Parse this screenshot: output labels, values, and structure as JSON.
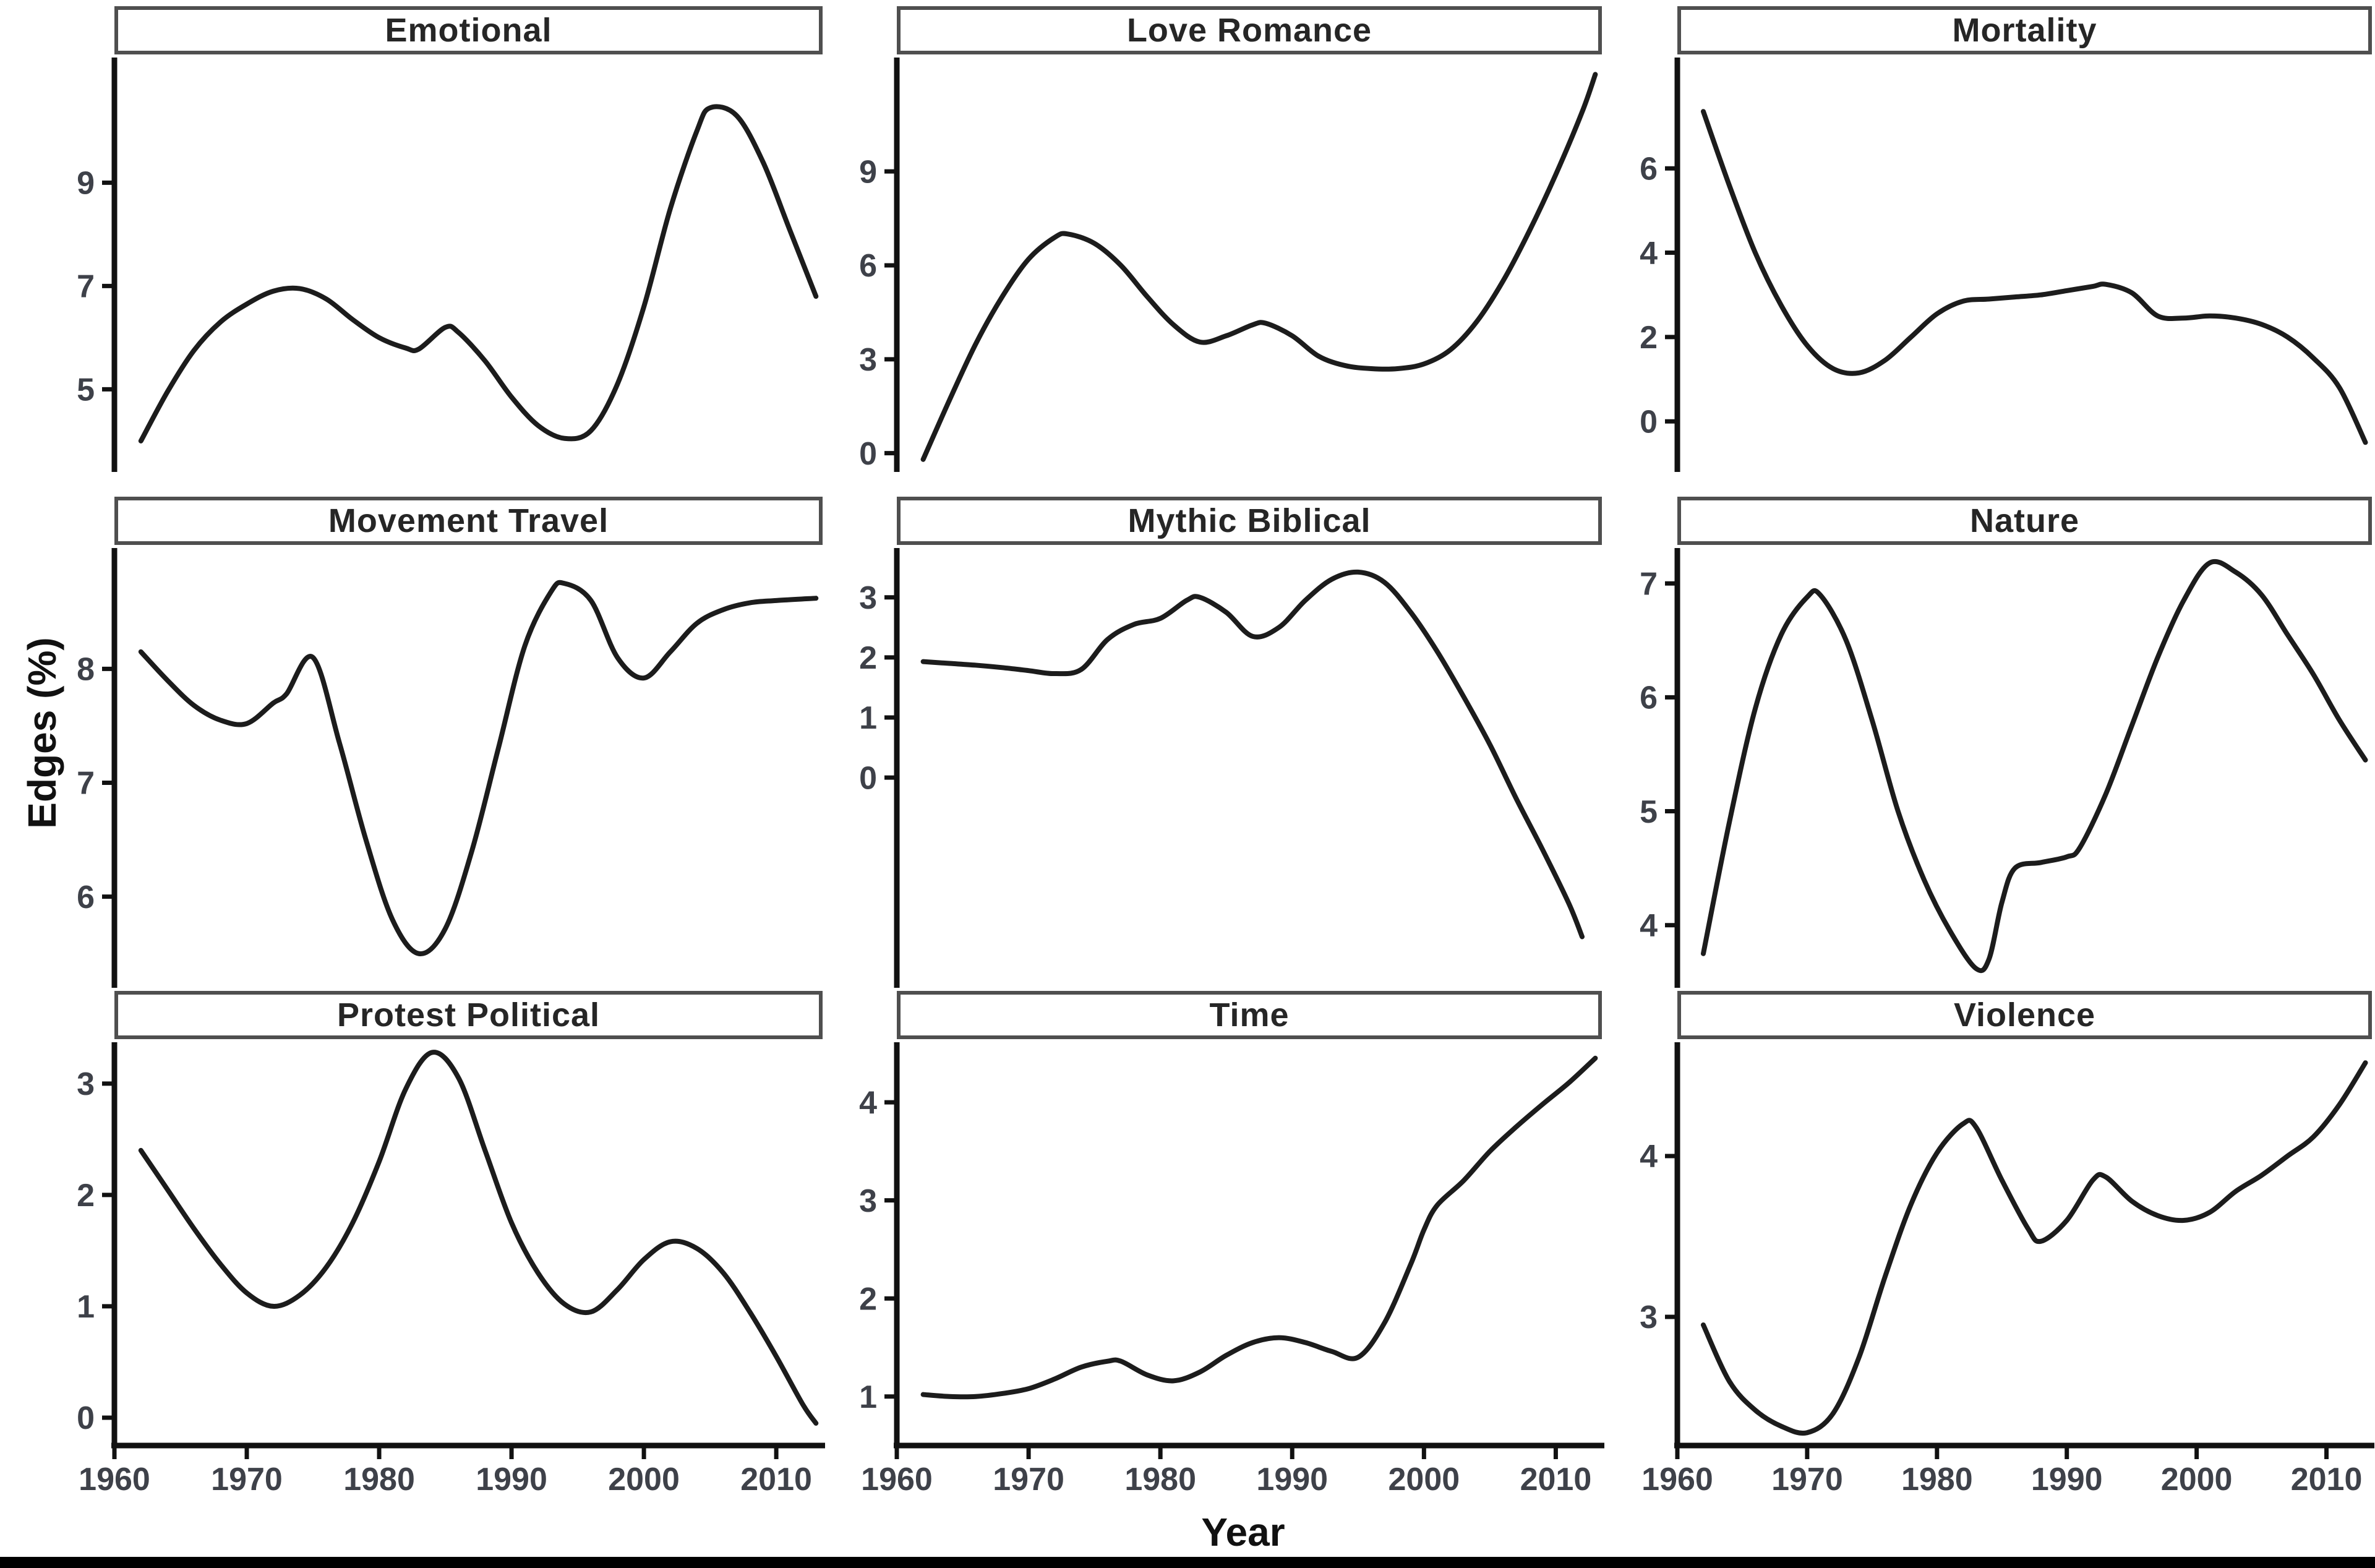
{
  "figure": {
    "ylabel": "Edges (%)",
    "xlabel": "Year"
  },
  "axis": {
    "xlim": [
      1960,
      2013.5
    ],
    "xticks": [
      1960,
      1970,
      1980,
      1990,
      2000,
      2010
    ],
    "xtick_labels": [
      "1960",
      "1970",
      "1980",
      "1990",
      "2000",
      "2010"
    ]
  },
  "style": {
    "curve_color": "#1c1c1c",
    "curve_width": 8,
    "axis_color": "#111111",
    "tick_label_color": "#3e4149",
    "strip_border_color": "#4f4f4f",
    "title_color": "#262626",
    "bottom_bar_color": "#000000"
  },
  "chart_data": [
    {
      "type": "line",
      "title": "Emotional",
      "ylim": [
        3.4,
        11.4
      ],
      "yticks": [
        5,
        7,
        9
      ],
      "points": [
        [
          1962,
          4.0
        ],
        [
          1964,
          4.95
        ],
        [
          1966,
          5.75
        ],
        [
          1968,
          6.3
        ],
        [
          1970,
          6.65
        ],
        [
          1972,
          6.9
        ],
        [
          1974,
          6.95
        ],
        [
          1976,
          6.75
        ],
        [
          1978,
          6.35
        ],
        [
          1980,
          6.0
        ],
        [
          1982,
          5.8
        ],
        [
          1983,
          5.78
        ],
        [
          1985,
          6.2
        ],
        [
          1986,
          6.1
        ],
        [
          1988,
          5.55
        ],
        [
          1990,
          4.85
        ],
        [
          1992,
          4.3
        ],
        [
          1994,
          4.05
        ],
        [
          1996,
          4.2
        ],
        [
          1998,
          5.1
        ],
        [
          2000,
          6.6
        ],
        [
          2002,
          8.5
        ],
        [
          2004,
          10.0
        ],
        [
          2005,
          10.45
        ],
        [
          2007,
          10.3
        ],
        [
          2009,
          9.4
        ],
        [
          2011,
          8.1
        ],
        [
          2013,
          6.8
        ]
      ]
    },
    {
      "type": "line",
      "title": "Love Romance",
      "ylim": [
        -0.6,
        12.6
      ],
      "yticks": [
        0,
        3,
        6,
        9
      ],
      "points": [
        [
          1962,
          -0.2
        ],
        [
          1964,
          1.7
        ],
        [
          1966,
          3.5
        ],
        [
          1968,
          5.0
        ],
        [
          1970,
          6.2
        ],
        [
          1972,
          6.9
        ],
        [
          1973,
          7.0
        ],
        [
          1975,
          6.7
        ],
        [
          1977,
          6.0
        ],
        [
          1979,
          5.0
        ],
        [
          1981,
          4.1
        ],
        [
          1983,
          3.55
        ],
        [
          1985,
          3.75
        ],
        [
          1987,
          4.1
        ],
        [
          1988,
          4.15
        ],
        [
          1990,
          3.75
        ],
        [
          1992,
          3.1
        ],
        [
          1994,
          2.8
        ],
        [
          1996,
          2.7
        ],
        [
          1998,
          2.7
        ],
        [
          2000,
          2.85
        ],
        [
          2002,
          3.3
        ],
        [
          2004,
          4.2
        ],
        [
          2006,
          5.5
        ],
        [
          2008,
          7.1
        ],
        [
          2010,
          8.9
        ],
        [
          2012,
          10.9
        ],
        [
          2013,
          12.1
        ]
      ]
    },
    {
      "type": "line",
      "title": "Mortality",
      "ylim": [
        -1.2,
        8.6
      ],
      "yticks": [
        0,
        2,
        4,
        6
      ],
      "points": [
        [
          1962,
          7.35
        ],
        [
          1964,
          5.6
        ],
        [
          1966,
          4.0
        ],
        [
          1968,
          2.75
        ],
        [
          1970,
          1.8
        ],
        [
          1972,
          1.25
        ],
        [
          1974,
          1.15
        ],
        [
          1976,
          1.45
        ],
        [
          1978,
          2.0
        ],
        [
          1980,
          2.55
        ],
        [
          1982,
          2.85
        ],
        [
          1984,
          2.9
        ],
        [
          1986,
          2.95
        ],
        [
          1988,
          3.0
        ],
        [
          1990,
          3.1
        ],
        [
          1992,
          3.2
        ],
        [
          1993,
          3.25
        ],
        [
          1995,
          3.05
        ],
        [
          1997,
          2.5
        ],
        [
          1999,
          2.45
        ],
        [
          2001,
          2.5
        ],
        [
          2003,
          2.45
        ],
        [
          2005,
          2.3
        ],
        [
          2007,
          2.0
        ],
        [
          2009,
          1.5
        ],
        [
          2011,
          0.8
        ],
        [
          2013,
          -0.5
        ]
      ]
    },
    {
      "type": "line",
      "title": "Movement Travel",
      "ylim": [
        5.2,
        9.05
      ],
      "yticks": [
        6,
        7,
        8
      ],
      "points": [
        [
          1962,
          8.15
        ],
        [
          1964,
          7.9
        ],
        [
          1966,
          7.68
        ],
        [
          1968,
          7.55
        ],
        [
          1970,
          7.52
        ],
        [
          1972,
          7.7
        ],
        [
          1973,
          7.78
        ],
        [
          1975,
          8.1
        ],
        [
          1977,
          7.35
        ],
        [
          1979,
          6.5
        ],
        [
          1981,
          5.8
        ],
        [
          1983,
          5.5
        ],
        [
          1985,
          5.72
        ],
        [
          1987,
          6.4
        ],
        [
          1989,
          7.3
        ],
        [
          1991,
          8.2
        ],
        [
          1993,
          8.68
        ],
        [
          1994,
          8.75
        ],
        [
          1996,
          8.6
        ],
        [
          1998,
          8.1
        ],
        [
          2000,
          7.92
        ],
        [
          2002,
          8.15
        ],
        [
          2004,
          8.4
        ],
        [
          2006,
          8.52
        ],
        [
          2008,
          8.58
        ],
        [
          2010,
          8.6
        ],
        [
          2013,
          8.62
        ]
      ]
    },
    {
      "type": "line",
      "title": "Mythic Biblical",
      "ylim": [
        -3.5,
        3.8
      ],
      "yticks": [
        0,
        1,
        2,
        3
      ],
      "points": [
        [
          1962,
          1.93
        ],
        [
          1964,
          1.9
        ],
        [
          1966,
          1.87
        ],
        [
          1968,
          1.83
        ],
        [
          1970,
          1.78
        ],
        [
          1972,
          1.73
        ],
        [
          1974,
          1.8
        ],
        [
          1976,
          2.3
        ],
        [
          1978,
          2.55
        ],
        [
          1980,
          2.65
        ],
        [
          1982,
          2.95
        ],
        [
          1983,
          3.0
        ],
        [
          1985,
          2.75
        ],
        [
          1987,
          2.35
        ],
        [
          1989,
          2.5
        ],
        [
          1991,
          2.95
        ],
        [
          1993,
          3.3
        ],
        [
          1995,
          3.42
        ],
        [
          1997,
          3.25
        ],
        [
          1999,
          2.75
        ],
        [
          2001,
          2.1
        ],
        [
          2003,
          1.35
        ],
        [
          2005,
          0.55
        ],
        [
          2007,
          -0.35
        ],
        [
          2009,
          -1.2
        ],
        [
          2011,
          -2.1
        ],
        [
          2012,
          -2.65
        ]
      ]
    },
    {
      "type": "line",
      "title": "Nature",
      "ylim": [
        3.45,
        7.3
      ],
      "yticks": [
        4,
        5,
        6,
        7
      ],
      "points": [
        [
          1962,
          3.75
        ],
        [
          1964,
          4.9
        ],
        [
          1966,
          5.9
        ],
        [
          1968,
          6.55
        ],
        [
          1970,
          6.88
        ],
        [
          1971,
          6.9
        ],
        [
          1973,
          6.5
        ],
        [
          1975,
          5.8
        ],
        [
          1977,
          5.0
        ],
        [
          1979,
          4.4
        ],
        [
          1981,
          3.95
        ],
        [
          1983,
          3.62
        ],
        [
          1984,
          3.7
        ],
        [
          1985,
          4.2
        ],
        [
          1986,
          4.5
        ],
        [
          1988,
          4.55
        ],
        [
          1990,
          4.6
        ],
        [
          1991,
          4.68
        ],
        [
          1993,
          5.15
        ],
        [
          1995,
          5.75
        ],
        [
          1997,
          6.35
        ],
        [
          1999,
          6.85
        ],
        [
          2001,
          7.18
        ],
        [
          2003,
          7.1
        ],
        [
          2005,
          6.9
        ],
        [
          2007,
          6.55
        ],
        [
          2009,
          6.2
        ],
        [
          2011,
          5.8
        ],
        [
          2013,
          5.45
        ]
      ]
    },
    {
      "type": "line",
      "title": "Protest Political",
      "ylim": [
        -0.25,
        3.36
      ],
      "yticks": [
        0,
        1,
        2,
        3
      ],
      "points": [
        [
          1962,
          2.4
        ],
        [
          1964,
          2.05
        ],
        [
          1966,
          1.7
        ],
        [
          1968,
          1.38
        ],
        [
          1970,
          1.12
        ],
        [
          1972,
          1.0
        ],
        [
          1974,
          1.1
        ],
        [
          1976,
          1.35
        ],
        [
          1978,
          1.75
        ],
        [
          1980,
          2.3
        ],
        [
          1982,
          2.95
        ],
        [
          1984,
          3.28
        ],
        [
          1986,
          3.05
        ],
        [
          1988,
          2.4
        ],
        [
          1990,
          1.75
        ],
        [
          1992,
          1.3
        ],
        [
          1994,
          1.02
        ],
        [
          1996,
          0.95
        ],
        [
          1998,
          1.15
        ],
        [
          2000,
          1.42
        ],
        [
          2002,
          1.58
        ],
        [
          2004,
          1.52
        ],
        [
          2006,
          1.3
        ],
        [
          2008,
          0.95
        ],
        [
          2010,
          0.55
        ],
        [
          2012,
          0.12
        ],
        [
          2013,
          -0.05
        ]
      ]
    },
    {
      "type": "line",
      "title": "Time",
      "ylim": [
        0.5,
        4.6
      ],
      "yticks": [
        1,
        2,
        3,
        4
      ],
      "points": [
        [
          1962,
          1.02
        ],
        [
          1964,
          1.0
        ],
        [
          1966,
          1.0
        ],
        [
          1968,
          1.03
        ],
        [
          1970,
          1.08
        ],
        [
          1972,
          1.18
        ],
        [
          1974,
          1.3
        ],
        [
          1976,
          1.36
        ],
        [
          1977,
          1.36
        ],
        [
          1979,
          1.22
        ],
        [
          1981,
          1.16
        ],
        [
          1983,
          1.25
        ],
        [
          1985,
          1.42
        ],
        [
          1987,
          1.55
        ],
        [
          1989,
          1.6
        ],
        [
          1991,
          1.55
        ],
        [
          1993,
          1.46
        ],
        [
          1995,
          1.4
        ],
        [
          1997,
          1.75
        ],
        [
          1999,
          2.35
        ],
        [
          2000,
          2.7
        ],
        [
          2001,
          2.95
        ],
        [
          2003,
          3.2
        ],
        [
          2005,
          3.5
        ],
        [
          2007,
          3.75
        ],
        [
          2009,
          3.98
        ],
        [
          2011,
          4.2
        ],
        [
          2013,
          4.45
        ]
      ]
    },
    {
      "type": "line",
      "title": "Violence",
      "ylim": [
        2.2,
        4.7
      ],
      "yticks": [
        3,
        4
      ],
      "points": [
        [
          1962,
          2.95
        ],
        [
          1964,
          2.6
        ],
        [
          1966,
          2.42
        ],
        [
          1968,
          2.32
        ],
        [
          1970,
          2.28
        ],
        [
          1972,
          2.4
        ],
        [
          1974,
          2.75
        ],
        [
          1976,
          3.25
        ],
        [
          1978,
          3.7
        ],
        [
          1980,
          4.02
        ],
        [
          1982,
          4.2
        ],
        [
          1983,
          4.18
        ],
        [
          1985,
          3.85
        ],
        [
          1987,
          3.55
        ],
        [
          1988,
          3.47
        ],
        [
          1990,
          3.6
        ],
        [
          1992,
          3.85
        ],
        [
          1993,
          3.87
        ],
        [
          1995,
          3.72
        ],
        [
          1997,
          3.63
        ],
        [
          1999,
          3.6
        ],
        [
          2001,
          3.65
        ],
        [
          2003,
          3.78
        ],
        [
          2005,
          3.88
        ],
        [
          2007,
          4.0
        ],
        [
          2009,
          4.12
        ],
        [
          2011,
          4.32
        ],
        [
          2013,
          4.58
        ]
      ]
    }
  ]
}
